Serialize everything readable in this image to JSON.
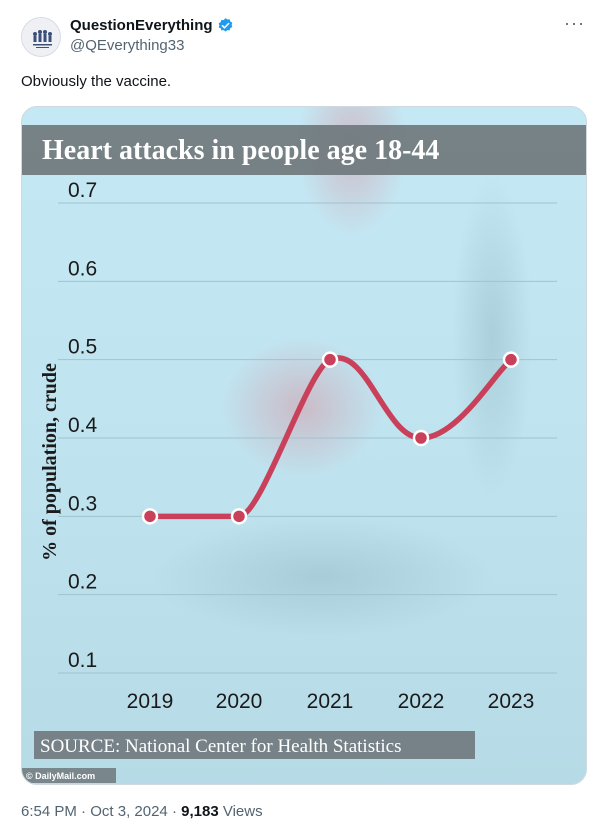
{
  "tweet": {
    "display_name": "QuestionEverything",
    "handle": "@QEverything33",
    "text": "Obviously the vaccine.",
    "time": "6:54 PM",
    "date": "Oct 3, 2024",
    "views_count": "9,183",
    "views_label": "Views",
    "more_glyph": "···"
  },
  "colors": {
    "verified": "#1d9bf0",
    "line": "#c9405a",
    "banner": "#6f787c"
  },
  "chart_data": {
    "type": "line",
    "title": "Heart attacks in people age 18-44",
    "ylabel": "% of population, crude",
    "xlabel": "",
    "categories": [
      "2019",
      "2020",
      "2021",
      "2022",
      "2023"
    ],
    "values": [
      0.3,
      0.3,
      0.5,
      0.4,
      0.5
    ],
    "ylim": [
      0.1,
      0.7
    ],
    "yticks": [
      "0.7",
      "0.6",
      "0.5",
      "0.4",
      "0.3",
      "0.2",
      "0.1"
    ],
    "grid": true,
    "source": "SOURCE: National Center for Health Statistics",
    "watermark": "© DailyMail.com"
  }
}
